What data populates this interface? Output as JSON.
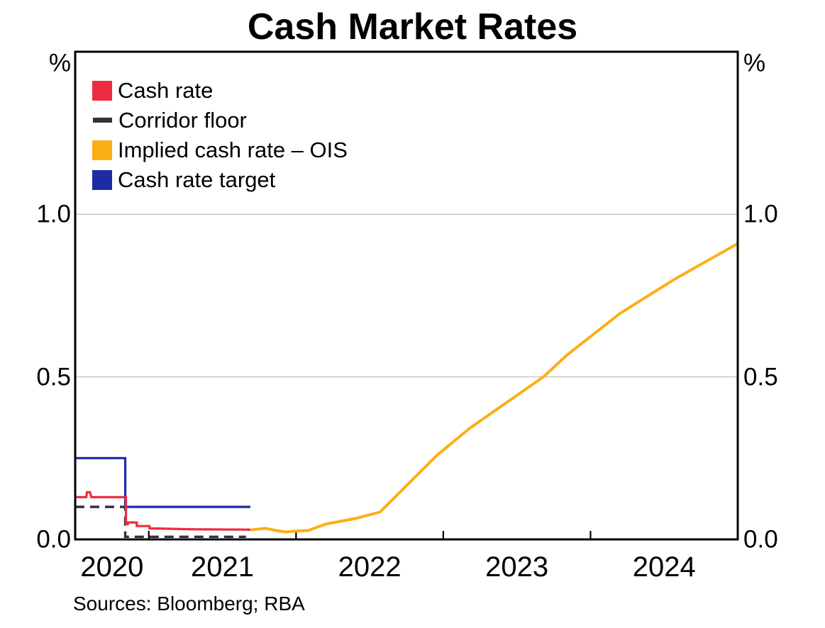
{
  "chart_data": {
    "type": "line",
    "title": "Cash Market Rates",
    "unit_label": "%",
    "sources": "Sources: Bloomberg; RBA",
    "xlim": [
      2020.5,
      2025.0
    ],
    "ylim": [
      0,
      1.5
    ],
    "grid": true,
    "y_gridlines": [
      0.5,
      1.0
    ],
    "x_ticks": [
      2021,
      2022,
      2023,
      2024
    ],
    "y_ticks": [
      {
        "value": 1.0,
        "label": "1.0"
      },
      {
        "value": 0.5,
        "label": "0.5"
      },
      {
        "value": 0.0,
        "label": "0.0"
      }
    ],
    "x_labels": [
      {
        "x": 2020.75,
        "label": "2020"
      },
      {
        "x": 2021.5,
        "label": "2021"
      },
      {
        "x": 2022.5,
        "label": "2022"
      },
      {
        "x": 2023.5,
        "label": "2023"
      },
      {
        "x": 2024.5,
        "label": "2024"
      }
    ],
    "colors": {
      "grid": "#C8C8C8",
      "axis": "#000000"
    },
    "legend_position": "top-left-inside",
    "legend": [
      {
        "label": "Cash rate",
        "swatch": "square",
        "color": "#ED2C3F"
      },
      {
        "label": "Corridor floor",
        "swatch": "dash",
        "color": "#333333"
      },
      {
        "label": "Implied cash rate – OIS",
        "swatch": "square",
        "color": "#FBAF17"
      },
      {
        "label": "Cash rate target",
        "swatch": "square",
        "color": "#1B2CA5"
      }
    ],
    "series": [
      {
        "name": "Cash rate",
        "color": "#ED2C3F",
        "width": 3.2,
        "style": "solid",
        "z": 3,
        "points": [
          [
            2020.5,
            0.13
          ],
          [
            2020.575,
            0.13
          ],
          [
            2020.58,
            0.145
          ],
          [
            2020.6,
            0.145
          ],
          [
            2020.61,
            0.13
          ],
          [
            2020.845,
            0.13
          ],
          [
            2020.845,
            0.047
          ],
          [
            2020.858,
            0.047
          ],
          [
            2020.858,
            0.052
          ],
          [
            2020.918,
            0.052
          ],
          [
            2020.918,
            0.041
          ],
          [
            2021.005,
            0.041
          ],
          [
            2021.005,
            0.034
          ],
          [
            2021.3,
            0.031
          ],
          [
            2021.69,
            0.03
          ]
        ]
      },
      {
        "name": "Corridor floor",
        "color": "#333333",
        "width": 3.4,
        "style": "dashed",
        "z": 1,
        "points": [
          [
            2020.5,
            0.1
          ],
          [
            2020.84,
            0.1
          ],
          [
            2020.84,
            0.008
          ],
          [
            2021.66,
            0.008
          ]
        ]
      },
      {
        "name": "Implied cash rate – OIS",
        "color": "#FBAF17",
        "width": 4,
        "style": "solid",
        "z": 4,
        "points": [
          [
            2021.69,
            0.029
          ],
          [
            2021.79,
            0.034
          ],
          [
            2021.87,
            0.027
          ],
          [
            2021.93,
            0.023
          ],
          [
            2022.0,
            0.026
          ],
          [
            2022.08,
            0.027
          ],
          [
            2022.2,
            0.047
          ],
          [
            2022.4,
            0.064
          ],
          [
            2022.57,
            0.084
          ],
          [
            2022.96,
            0.26
          ],
          [
            2023.18,
            0.342
          ],
          [
            2023.68,
            0.5
          ],
          [
            2023.84,
            0.567
          ],
          [
            2024.2,
            0.695
          ],
          [
            2024.57,
            0.8
          ],
          [
            2025.0,
            0.91
          ]
        ]
      },
      {
        "name": "Cash rate target",
        "color": "#1B2CA5",
        "width": 3.2,
        "style": "solid",
        "z": 2,
        "points": [
          [
            2020.5,
            0.25
          ],
          [
            2020.84,
            0.25
          ],
          [
            2020.84,
            0.1
          ],
          [
            2021.69,
            0.1
          ]
        ]
      }
    ]
  }
}
